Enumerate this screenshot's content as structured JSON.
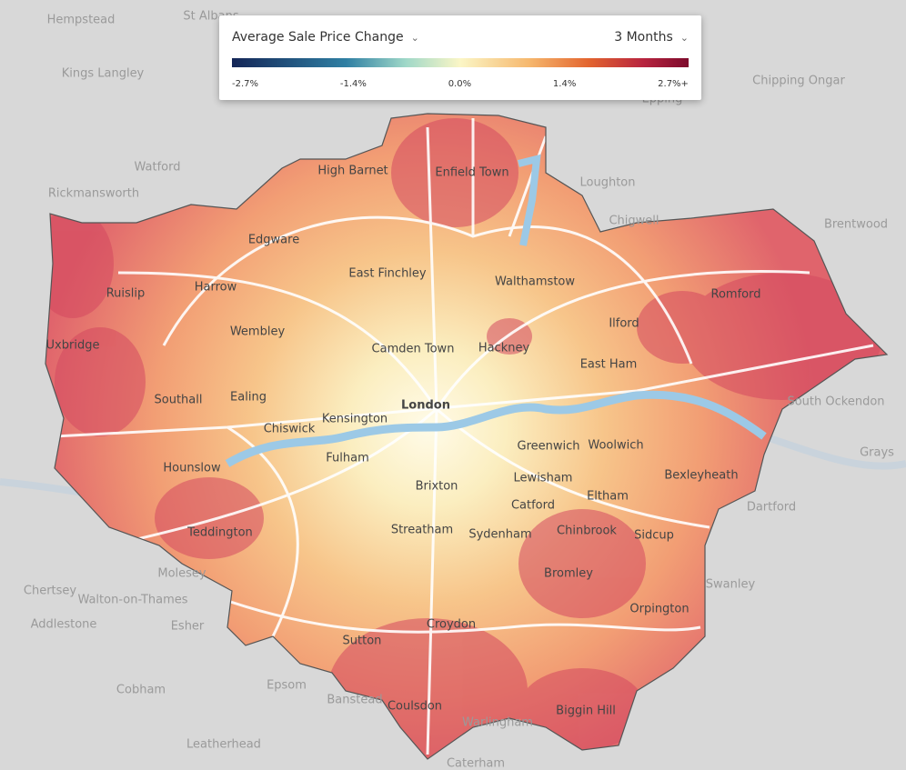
{
  "legend": {
    "title": "Average Sale Price Change",
    "period": "3 Months",
    "scale_labels": [
      "-2.7%",
      "-1.4%",
      "0.0%",
      "1.4%",
      "2.7%+"
    ]
  },
  "city": "London",
  "places_inside": [
    "High Barnet",
    "Enfield Town",
    "Edgware",
    "East Finchley",
    "Walthamstow",
    "Ruislip",
    "Harrow",
    "Romford",
    "Ilford",
    "Wembley",
    "Camden Town",
    "Hackney",
    "East Ham",
    "Uxbridge",
    "Southall",
    "Ealing",
    "Kensington",
    "Chiswick",
    "Fulham",
    "Greenwich",
    "Woolwich",
    "Hounslow",
    "Lewisham",
    "Bexleyheath",
    "Brixton",
    "Catford",
    "Eltham",
    "Teddington",
    "Streatham",
    "Sydenham",
    "Chinbrook",
    "Sidcup",
    "Bromley",
    "Orpington",
    "Croydon",
    "Sutton",
    "Coulsdon",
    "Biggin Hill"
  ],
  "places_outside": [
    "Hempstead",
    "St Albans",
    "Kings Langley",
    "Chipping Ongar",
    "Epping",
    "Watford",
    "Rickmansworth",
    "Loughton",
    "Chigwell",
    "Brentwood",
    "South Ockendon",
    "Grays",
    "Dartford",
    "Swanley",
    "Molesey",
    "Chertsey",
    "Walton-on-Thames",
    "Addlestone",
    "Esher",
    "Cobham",
    "Epsom",
    "Banstead",
    "Leatherhead",
    "Warlingham",
    "Caterham"
  ]
}
